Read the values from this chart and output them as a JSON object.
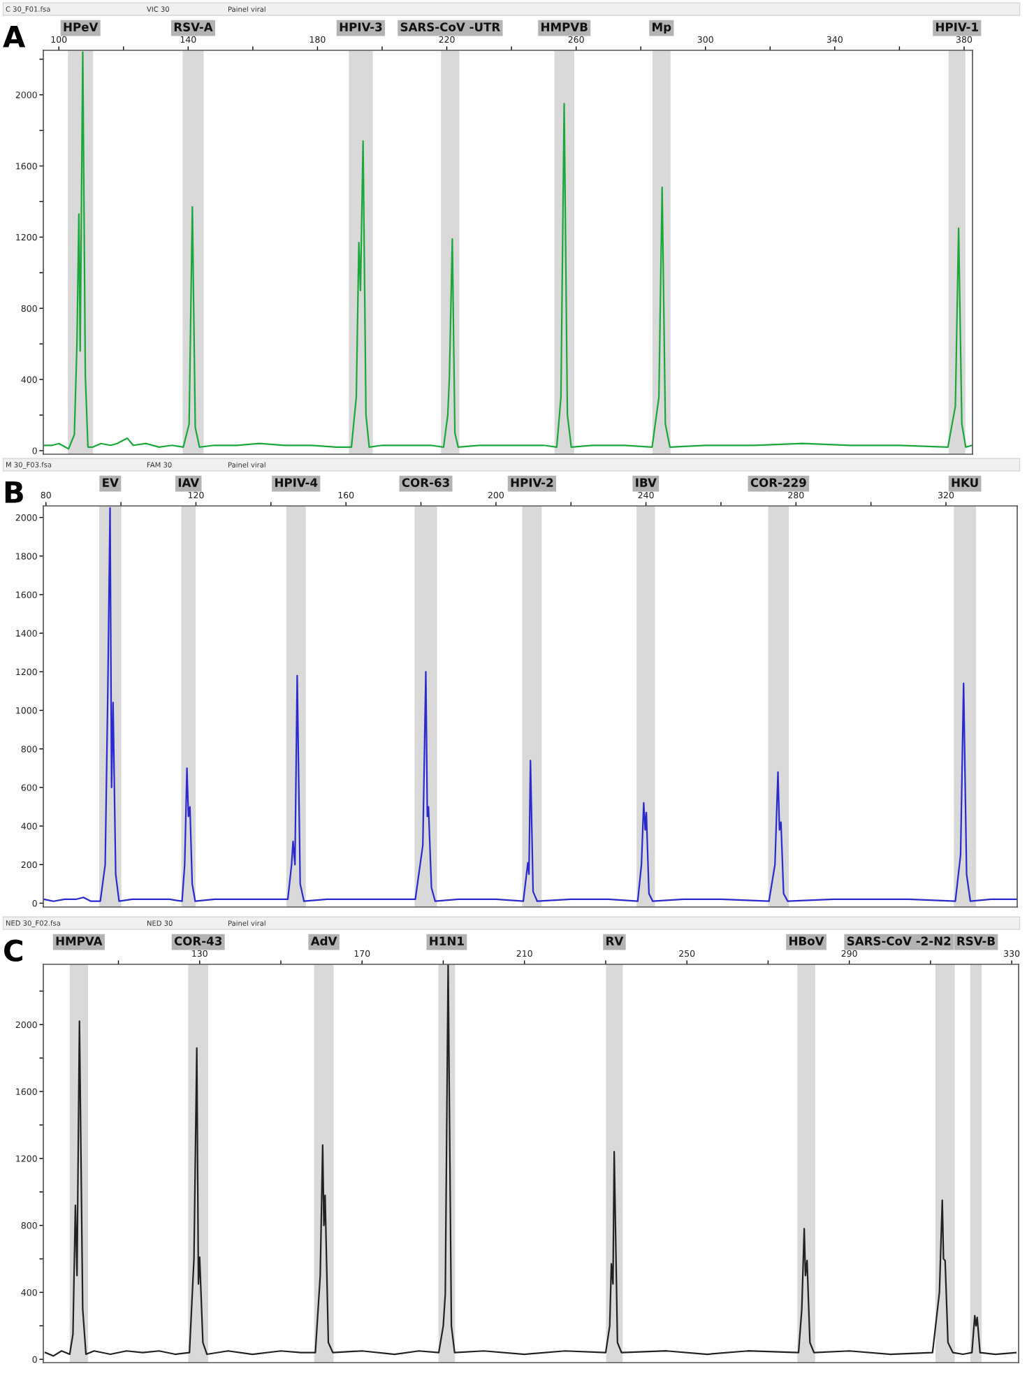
{
  "chart_data": [
    {
      "type": "line",
      "title": "A",
      "annotations": [
        "C 30_F01.fsa",
        "VIC 30",
        "Painel viral"
      ],
      "series": [
        {
          "color": "#1aa83a",
          "x": [
            95.5,
            98,
            100,
            102,
            103,
            104.8,
            105.6,
            106.2,
            106.6,
            107.4,
            108.2,
            109,
            110.5,
            113,
            116,
            118,
            121.2,
            123,
            127,
            131,
            135,
            138.5,
            140.3,
            141.3,
            142.2,
            143.5,
            148,
            155,
            162,
            170,
            178,
            186,
            190.5,
            192,
            192.8,
            193.3,
            194.1,
            195,
            196,
            200,
            208,
            215,
            219,
            220.3,
            220.8,
            221.7,
            222.5,
            223.5,
            230,
            240,
            250,
            254,
            255.3,
            256.3,
            257.3,
            258.5,
            265,
            275,
            283.5,
            285.6,
            286.6,
            287.6,
            289,
            300,
            315,
            330,
            345,
            360,
            375,
            377.3,
            378.3,
            379.3,
            380.5,
            382.5
          ],
          "values": [
            30,
            30,
            40,
            20,
            10,
            90,
            600,
            1330,
            560,
            2240,
            420,
            20,
            20,
            40,
            30,
            40,
            70,
            30,
            40,
            20,
            30,
            20,
            150,
            1370,
            130,
            20,
            30,
            30,
            40,
            30,
            30,
            20,
            20,
            300,
            1170,
            900,
            1740,
            200,
            20,
            30,
            30,
            30,
            20,
            200,
            410,
            1190,
            100,
            20,
            30,
            30,
            30,
            20,
            300,
            1950,
            200,
            20,
            30,
            30,
            20,
            300,
            1480,
            150,
            20,
            30,
            30,
            40,
            30,
            30,
            20,
            250,
            1250,
            150,
            20,
            30
          ]
        }
      ],
      "bands": [
        {
          "axis": "x",
          "from": 102.8,
          "to": 110.6,
          "label": "HPeV",
          "color": "#d9d9d9"
        },
        {
          "axis": "x",
          "from": 138.3,
          "to": 144.8,
          "label": "RSV-A",
          "color": "#d9d9d9"
        },
        {
          "axis": "x",
          "from": 189.7,
          "to": 197.1,
          "label": "HPIV-3",
          "color": "#d9d9d9"
        },
        {
          "axis": "x",
          "from": 218.2,
          "to": 223.9,
          "label": "SARS-CoV -UTR",
          "color": "#d9d9d9"
        },
        {
          "axis": "x",
          "from": 253.3,
          "to": 259.4,
          "label": "HMPVB",
          "color": "#d9d9d9"
        },
        {
          "axis": "x",
          "from": 283.6,
          "to": 289.2,
          "label": "Mp",
          "color": "#d9d9d9"
        },
        {
          "axis": "x",
          "from": 375.2,
          "to": 380.4,
          "label": "HPIV-1",
          "color": "#d9d9d9"
        }
      ],
      "xlim": [
        95.2,
        382.6
      ],
      "ylim": [
        -20,
        2250
      ],
      "xticks": [
        100,
        {
          "value": 120,
          "label": null
        },
        140,
        {
          "value": 160,
          "label": null
        },
        180,
        {
          "value": 200,
          "label": null
        },
        220,
        {
          "value": 240,
          "label": null
        },
        260,
        {
          "value": 280,
          "label": null
        },
        300,
        {
          "value": 320,
          "label": null
        },
        340,
        {
          "value": 360,
          "label": null
        },
        380
      ],
      "yticks": [
        0,
        {
          "value": 200,
          "label": null
        },
        400,
        {
          "value": 600,
          "label": null
        },
        800,
        {
          "value": 1000,
          "label": null
        },
        1200,
        {
          "value": 1400,
          "label": null
        },
        1600,
        {
          "value": 1800,
          "label": null
        },
        2000,
        {
          "value": 2200,
          "label": null
        }
      ],
      "grid": false,
      "legend": false
    },
    {
      "type": "line",
      "title": "B",
      "annotations": [
        "M 30_F03.fsa",
        "FAM 30",
        "Painel viral"
      ],
      "series": [
        {
          "color": "#2a2ad0",
          "x": [
            79.5,
            82,
            85,
            88,
            90,
            92,
            94.5,
            95.8,
            96.5,
            97.1,
            97.5,
            97.9,
            98.6,
            99.5,
            103,
            108,
            113,
            116.3,
            117,
            117.6,
            118,
            118.4,
            119,
            119.8,
            125,
            132,
            140,
            144.5,
            145.5,
            145.9,
            146.4,
            147,
            147.8,
            148.8,
            155,
            165,
            172,
            178.5,
            180.5,
            181.3,
            181.7,
            182,
            182.8,
            183.8,
            190,
            200,
            207.3,
            208.5,
            208.8,
            209.2,
            209.9,
            211,
            220,
            230,
            237.8,
            238.8,
            239.4,
            239.8,
            240.1,
            240.8,
            241.8,
            250,
            260,
            272.8,
            274.4,
            275.2,
            275.6,
            276,
            276.7,
            277.8,
            290,
            300,
            310,
            322.5,
            323.9,
            324.7,
            325.5,
            326.5,
            332,
            339
          ],
          "values": [
            20,
            10,
            20,
            20,
            30,
            10,
            10,
            200,
            1100,
            2050,
            600,
            1040,
            150,
            10,
            20,
            20,
            20,
            10,
            200,
            700,
            450,
            500,
            100,
            10,
            20,
            20,
            20,
            20,
            200,
            320,
            200,
            1180,
            100,
            10,
            20,
            20,
            20,
            20,
            300,
            1200,
            450,
            500,
            80,
            10,
            20,
            20,
            10,
            210,
            150,
            740,
            60,
            10,
            20,
            20,
            10,
            200,
            520,
            380,
            470,
            50,
            10,
            20,
            20,
            10,
            200,
            680,
            380,
            420,
            50,
            10,
            20,
            20,
            20,
            10,
            250,
            1140,
            150,
            10,
            20,
            20
          ]
        }
      ],
      "bands": [
        {
          "axis": "x",
          "from": 94.2,
          "to": 100.1,
          "label": "EV",
          "color": "#d9d9d9"
        },
        {
          "axis": "x",
          "from": 116.1,
          "to": 119.9,
          "label": "IAV",
          "color": "#d9d9d9"
        },
        {
          "axis": "x",
          "from": 144.1,
          "to": 149.3,
          "label": "HPIV-4",
          "color": "#d9d9d9"
        },
        {
          "axis": "x",
          "from": 178.3,
          "to": 184.3,
          "label": "COR-63",
          "color": "#d9d9d9"
        },
        {
          "axis": "x",
          "from": 207.0,
          "to": 212.2,
          "label": "HPIV-2",
          "color": "#d9d9d9"
        },
        {
          "axis": "x",
          "from": 237.5,
          "to": 242.4,
          "label": "IBV",
          "color": "#d9d9d9"
        },
        {
          "axis": "x",
          "from": 272.6,
          "to": 278.1,
          "label": "COR-229",
          "color": "#d9d9d9"
        },
        {
          "axis": "x",
          "from": 322.1,
          "to": 328.0,
          "label": "HKU",
          "color": "#d9d9d9"
        }
      ],
      "xlim": [
        79.3,
        339
      ],
      "ylim": [
        -20,
        2060
      ],
      "xticks": [
        80,
        {
          "value": 100,
          "label": null
        },
        120,
        {
          "value": 140,
          "label": null
        },
        160,
        {
          "value": 180,
          "label": null
        },
        200,
        {
          "value": 220,
          "label": null
        },
        240,
        {
          "value": 260,
          "label": null
        },
        280,
        {
          "value": 300,
          "label": null
        },
        320
      ],
      "yticks": [
        0,
        200,
        400,
        600,
        800,
        1000,
        1200,
        1400,
        1600,
        1800,
        2000
      ],
      "grid": false,
      "legend": false
    },
    {
      "type": "line",
      "title": "C",
      "annotations": [
        "NED 30_F02.fsa",
        "NED 30",
        "Painel viral"
      ],
      "series": [
        {
          "color": "#222222",
          "x": [
            92,
            94,
            96,
            98,
            98.8,
            99.4,
            99.8,
            100.4,
            101.2,
            102,
            104,
            108,
            112,
            116,
            120,
            124,
            127.5,
            128.6,
            129.3,
            129.7,
            130,
            130.8,
            131.8,
            137,
            143,
            150,
            155,
            158.5,
            159.7,
            160.3,
            160.6,
            160.9,
            161.7,
            162.8,
            170,
            178,
            184,
            188.9,
            190,
            190.5,
            191.2,
            192,
            192.8,
            200,
            210,
            220,
            230,
            231,
            231.4,
            231.8,
            232.1,
            232.9,
            233.9,
            245,
            255,
            265,
            277.5,
            278.3,
            278.9,
            279.2,
            279.6,
            280.3,
            281.3,
            290,
            300,
            310.5,
            312.2,
            312.9,
            313.2,
            313.6,
            314.3,
            315.5,
            318,
            320.2,
            320.9,
            321.2,
            321.5,
            322.2,
            326,
            331
          ],
          "values": [
            40,
            20,
            50,
            30,
            150,
            920,
            500,
            2020,
            300,
            30,
            50,
            30,
            50,
            40,
            50,
            30,
            40,
            600,
            1860,
            450,
            610,
            100,
            30,
            50,
            30,
            50,
            40,
            40,
            500,
            1280,
            800,
            980,
            100,
            40,
            50,
            30,
            50,
            40,
            200,
            390,
            2360,
            200,
            40,
            50,
            30,
            50,
            40,
            200,
            570,
            450,
            1240,
            100,
            40,
            50,
            30,
            50,
            40,
            300,
            780,
            500,
            590,
            100,
            40,
            50,
            30,
            40,
            400,
            950,
            600,
            590,
            100,
            40,
            30,
            40,
            260,
            200,
            250,
            40,
            30,
            40
          ]
        }
      ],
      "bands": [
        {
          "axis": "x",
          "from": 98.0,
          "to": 102.5,
          "label": "HMPVA",
          "color": "#d9d9d9"
        },
        {
          "axis": "x",
          "from": 127.2,
          "to": 132.1,
          "label": "COR-43",
          "color": "#d9d9d9"
        },
        {
          "axis": "x",
          "from": 158.2,
          "to": 163.0,
          "label": "AdV",
          "color": "#d9d9d9"
        },
        {
          "axis": "x",
          "from": 188.8,
          "to": 192.9,
          "label": "H1N1",
          "color": "#d9d9d9"
        },
        {
          "axis": "x",
          "from": 230.1,
          "to": 234.2,
          "label": "RV",
          "color": "#d9d9d9"
        },
        {
          "axis": "x",
          "from": 277.2,
          "to": 281.6,
          "label": "HBoV",
          "color": "#d9d9d9"
        },
        {
          "axis": "x",
          "from": 311.2,
          "to": 316.0,
          "label": "SARS-CoV -2-N2",
          "color": "#d9d9d9"
        },
        {
          "axis": "x",
          "from": 319.8,
          "to": 322.6,
          "label": "RSV-B",
          "color": "#d9d9d9"
        }
      ],
      "xlim": [
        91.5,
        331.7
      ],
      "ylim": [
        -20,
        2360
      ],
      "xticks": [
        {
          "value": 110,
          "label": null
        },
        130,
        {
          "value": 150,
          "label": null
        },
        170,
        {
          "value": 190,
          "label": null
        },
        210,
        {
          "value": 230,
          "label": null
        },
        250,
        {
          "value": 270,
          "label": null
        },
        290,
        {
          "value": 310,
          "label": null
        },
        330
      ],
      "yticks": [
        0,
        {
          "value": 200,
          "label": null
        },
        400,
        {
          "value": 600,
          "label": null
        },
        800,
        {
          "value": 1000,
          "label": null
        },
        1200,
        {
          "value": 1400,
          "label": null
        },
        1600,
        {
          "value": 1800,
          "label": null
        },
        2000,
        {
          "value": 2200,
          "label": null
        }
      ],
      "grid": false,
      "legend": false
    }
  ]
}
